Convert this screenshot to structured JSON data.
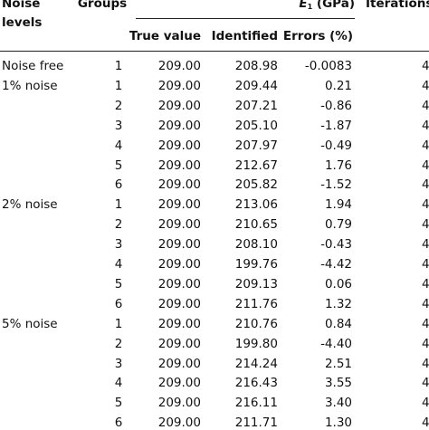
{
  "header": {
    "noise_levels_line1": "Noise",
    "noise_levels_line2": "levels",
    "groups": "Groups",
    "e1_symbol": "E",
    "e1_sub": "1",
    "e1_unit": " (GPa)",
    "iterations": "Iterations",
    "true_value": "True value",
    "identified": "Identified",
    "errors": "Errors (%)"
  },
  "rows": [
    {
      "noise": "Noise free",
      "group": "1",
      "true": "209.00",
      "identified": "208.98",
      "error": "-0.0083",
      "iter": "4"
    },
    {
      "noise": "1% noise",
      "group": "1",
      "true": "209.00",
      "identified": "209.44",
      "error": "0.21",
      "iter": "4"
    },
    {
      "noise": "",
      "group": "2",
      "true": "209.00",
      "identified": "207.21",
      "error": "-0.86",
      "iter": "4"
    },
    {
      "noise": "",
      "group": "3",
      "true": "209.00",
      "identified": "205.10",
      "error": "-1.87",
      "iter": "4"
    },
    {
      "noise": "",
      "group": "4",
      "true": "209.00",
      "identified": "207.97",
      "error": "-0.49",
      "iter": "4"
    },
    {
      "noise": "",
      "group": "5",
      "true": "209.00",
      "identified": "212.67",
      "error": "1.76",
      "iter": "4"
    },
    {
      "noise": "",
      "group": "6",
      "true": "209.00",
      "identified": "205.82",
      "error": "-1.52",
      "iter": "4"
    },
    {
      "noise": "2% noise",
      "group": "1",
      "true": "209.00",
      "identified": "213.06",
      "error": "1.94",
      "iter": "4"
    },
    {
      "noise": "",
      "group": "2",
      "true": "209.00",
      "identified": "210.65",
      "error": "0.79",
      "iter": "4"
    },
    {
      "noise": "",
      "group": "3",
      "true": "209.00",
      "identified": "208.10",
      "error": "-0.43",
      "iter": "4"
    },
    {
      "noise": "",
      "group": "4",
      "true": "209.00",
      "identified": "199.76",
      "error": "-4.42",
      "iter": "4"
    },
    {
      "noise": "",
      "group": "5",
      "true": "209.00",
      "identified": "209.13",
      "error": "0.06",
      "iter": "4"
    },
    {
      "noise": "",
      "group": "6",
      "true": "209.00",
      "identified": "211.76",
      "error": "1.32",
      "iter": "4"
    },
    {
      "noise": "5% noise",
      "group": "1",
      "true": "209.00",
      "identified": "210.76",
      "error": "0.84",
      "iter": "4"
    },
    {
      "noise": "",
      "group": "2",
      "true": "209.00",
      "identified": "199.80",
      "error": "-4.40",
      "iter": "4"
    },
    {
      "noise": "",
      "group": "3",
      "true": "209.00",
      "identified": "214.24",
      "error": "2.51",
      "iter": "4"
    },
    {
      "noise": "",
      "group": "4",
      "true": "209.00",
      "identified": "216.43",
      "error": "3.55",
      "iter": "4"
    },
    {
      "noise": "",
      "group": "5",
      "true": "209.00",
      "identified": "216.11",
      "error": "3.40",
      "iter": "4"
    },
    {
      "noise": "",
      "group": "6",
      "true": "209.00",
      "identified": "211.71",
      "error": "1.30",
      "iter": "4"
    }
  ]
}
